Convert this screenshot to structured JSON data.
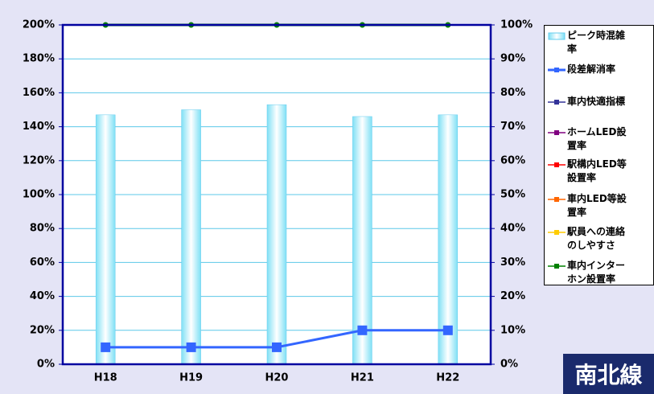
{
  "chart_data": {
    "type": "bar",
    "categories": [
      "H18",
      "H19",
      "H20",
      "H21",
      "H22"
    ],
    "series": [
      {
        "name": "ピーク時混雑率",
        "color": "#7fe0f5",
        "type": "bar",
        "values": [
          147,
          150,
          153,
          146,
          147
        ]
      },
      {
        "name": "段差解消率",
        "color": "#3366ff",
        "type": "line",
        "axis": "y2",
        "values": [
          5,
          5,
          5,
          10,
          10
        ]
      },
      {
        "name": "車内快適指標",
        "color": "#333399",
        "type": "line",
        "axis": "y2",
        "values": [
          null,
          null,
          null,
          null,
          null
        ]
      },
      {
        "name": "ホームLED設置率",
        "color": "#800080",
        "type": "line",
        "axis": "y2",
        "values": [
          null,
          null,
          null,
          null,
          null
        ]
      },
      {
        "name": "駅構内LED等設置率",
        "color": "#ff0000",
        "type": "line",
        "axis": "y2",
        "values": [
          null,
          null,
          null,
          null,
          null
        ]
      },
      {
        "name": "車内LED等設置率",
        "color": "#ff6600",
        "type": "line",
        "axis": "y2",
        "values": [
          null,
          null,
          null,
          null,
          null
        ]
      },
      {
        "name": "駅員への連絡のしやすさ",
        "color": "#ffcc00",
        "type": "line",
        "axis": "y2",
        "values": [
          null,
          null,
          null,
          null,
          null
        ]
      },
      {
        "name": "車内インターホン設置率",
        "color": "#008000",
        "type": "line",
        "axis": "y2",
        "values": [
          100,
          100,
          100,
          100,
          100
        ]
      }
    ],
    "ylim": [
      0,
      200
    ],
    "yticks": [
      {
        "value": 0,
        "label": "0%"
      },
      {
        "value": 20,
        "label": "20%"
      },
      {
        "value": 40,
        "label": "40%"
      },
      {
        "value": 60,
        "label": "60%"
      },
      {
        "value": 80,
        "label": "80%"
      },
      {
        "value": 100,
        "label": "100%"
      },
      {
        "value": 120,
        "label": "120%"
      },
      {
        "value": 140,
        "label": "140%"
      },
      {
        "value": 160,
        "label": "160%"
      },
      {
        "value": 180,
        "label": "180%"
      },
      {
        "value": 200,
        "label": "200%"
      }
    ],
    "y2lim": [
      0,
      100
    ],
    "y2ticks": [
      {
        "value": 0,
        "label": "0%"
      },
      {
        "value": 10,
        "label": "10%"
      },
      {
        "value": 20,
        "label": "20%"
      },
      {
        "value": 30,
        "label": "30%"
      },
      {
        "value": 40,
        "label": "40%"
      },
      {
        "value": 50,
        "label": "50%"
      },
      {
        "value": 60,
        "label": "60%"
      },
      {
        "value": 70,
        "label": "70%"
      },
      {
        "value": 80,
        "label": "80%"
      },
      {
        "value": 90,
        "label": "90%"
      },
      {
        "value": 100,
        "label": "100%"
      }
    ],
    "grid": true,
    "legend": "right",
    "badge": "南北線"
  }
}
